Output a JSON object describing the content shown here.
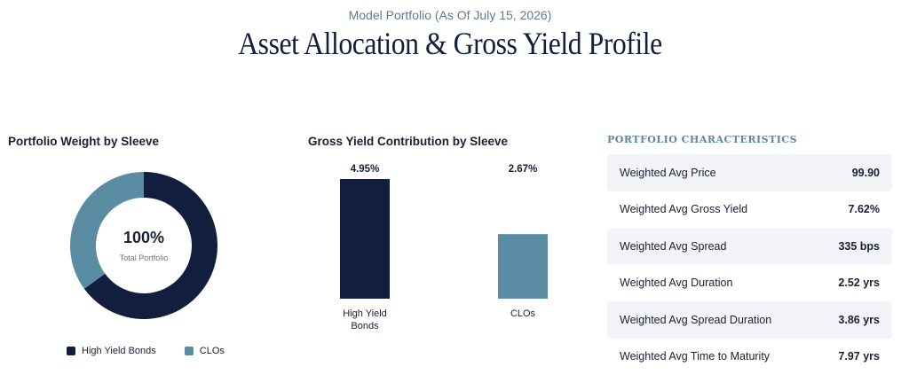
{
  "header": {
    "subtitle": "Model Portfolio (As Of July 15, 2026)",
    "title": "Asset Allocation & Gross Yield Profile"
  },
  "donut": {
    "title": "Portfolio Weight by Sleeve",
    "center_value": "100%",
    "center_label": "Total Portfolio",
    "legend": [
      {
        "label": "High Yield Bonds",
        "color": "#121e3d"
      },
      {
        "label": "CLOs",
        "color": "#5a8ca3"
      }
    ]
  },
  "bars": {
    "title": "Gross Yield Contribution by Sleeve"
  },
  "characteristics": {
    "heading": "PORTFOLIO CHARACTERISTICS",
    "rows": [
      {
        "label": "Weighted Avg Price",
        "value": "99.90"
      },
      {
        "label": "Weighted Avg Gross Yield",
        "value": "7.62%"
      },
      {
        "label": "Weighted Avg Spread",
        "value": "335 bps"
      },
      {
        "label": "Weighted Avg Duration",
        "value": "2.52 yrs"
      },
      {
        "label": "Weighted Avg Spread Duration",
        "value": "3.86 yrs"
      },
      {
        "label": "Weighted Avg Time to Maturity",
        "value": "7.97 yrs"
      }
    ]
  },
  "chart_data": [
    {
      "type": "pie",
      "title": "Portfolio Weight by Sleeve",
      "categories": [
        "High Yield Bonds",
        "CLOs"
      ],
      "values": [
        65,
        35
      ],
      "colors": [
        "#121e3d",
        "#5a8ca3"
      ],
      "legend": "bottom"
    },
    {
      "type": "bar",
      "title": "Gross Yield Contribution by Sleeve",
      "categories": [
        "High Yield Bonds",
        "CLOs"
      ],
      "values": [
        4.95,
        2.67
      ],
      "labels": [
        "4.95%",
        "2.67%"
      ],
      "colors": [
        "#121e3d",
        "#5a8ca3"
      ],
      "ylim": [
        0,
        4.95
      ]
    }
  ]
}
